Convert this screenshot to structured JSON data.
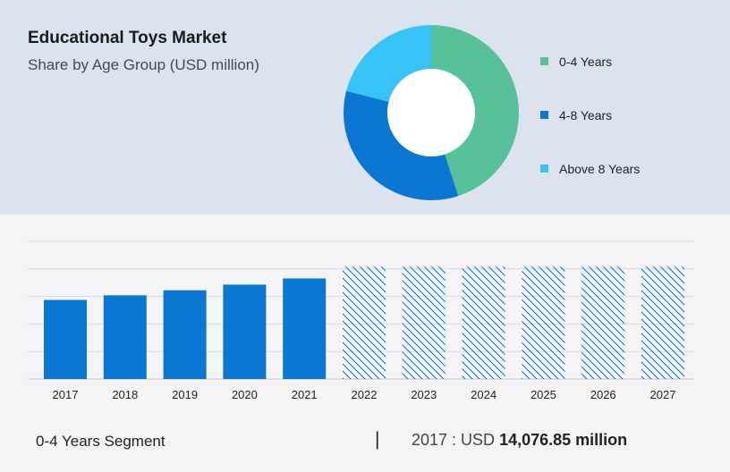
{
  "header": {
    "title": "Educational Toys Market",
    "subtitle": "Share by Age Group (USD million)"
  },
  "colors": {
    "green": "#57c19a",
    "blue": "#0a78d2",
    "lightblue": "#38c3f7",
    "bar": "#0a78d2",
    "hatch": "#0a78d2"
  },
  "chart_data": [
    {
      "type": "pie",
      "donut": true,
      "categories": [
        "0-4 Years",
        "4-8 Years",
        "Above 8 Years"
      ],
      "values": [
        45,
        34,
        21
      ],
      "colors": [
        "#57c19a",
        "#0a78d2",
        "#38c3f7"
      ],
      "legend": "right"
    },
    {
      "type": "bar",
      "categories": [
        "2017",
        "2018",
        "2019",
        "2020",
        "2021",
        "2022",
        "2023",
        "2024",
        "2025",
        "2026",
        "2027"
      ],
      "values": [
        14076.85,
        14900,
        15800,
        16800,
        17900,
        20000,
        20000,
        20000,
        20000,
        20000,
        20000
      ],
      "forecast_from": "2022",
      "ylim": [
        0,
        24500
      ],
      "grid": true
    }
  ],
  "footer": {
    "segment": "0-4 Years Segment",
    "separator": "|",
    "year_label": "2017 : USD",
    "value": "14,076.85 million"
  }
}
